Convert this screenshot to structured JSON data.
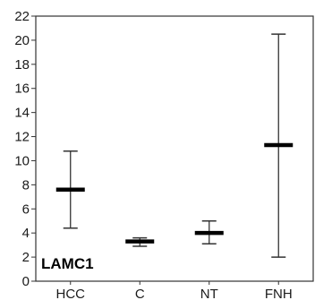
{
  "chart_data": {
    "type": "box",
    "title": "",
    "xlabel": "",
    "ylabel": "",
    "inner_label": "LAMC1",
    "categories": [
      "HCC",
      "C",
      "NT",
      "FNH"
    ],
    "stats": [
      {
        "category": "HCC",
        "min": 4.4,
        "mean": 7.6,
        "max": 10.8
      },
      {
        "category": "C",
        "min": 2.9,
        "mean": 3.3,
        "max": 3.6
      },
      {
        "category": "NT",
        "min": 3.1,
        "mean": 4.0,
        "max": 5.0
      },
      {
        "category": "FNH",
        "min": 2.0,
        "mean": 11.3,
        "max": 20.5
      }
    ],
    "ylim": [
      0,
      22
    ],
    "yticks": [
      0,
      2,
      4,
      6,
      8,
      10,
      12,
      14,
      16,
      18,
      20,
      22
    ],
    "grid": false,
    "colors": {
      "marks": "#000000",
      "whisker": "#333333",
      "axis": "#333333"
    }
  }
}
